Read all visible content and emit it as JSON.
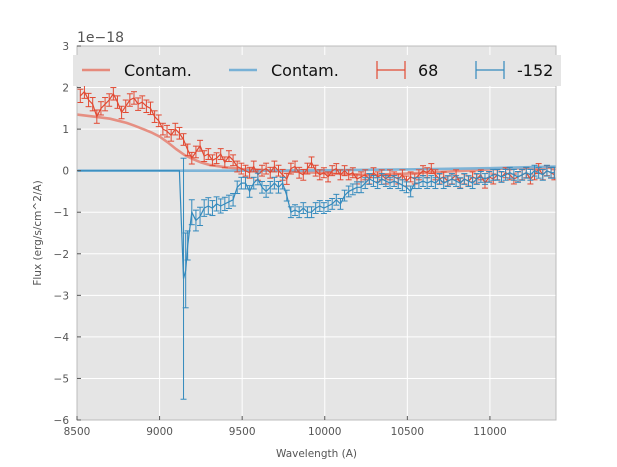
{
  "chart_data": {
    "type": "line",
    "xlabel": "Wavelength (A)",
    "ylabel": "Flux (erg/s/cm^2/A)",
    "offset_text": "1e−18",
    "xlim": [
      8500,
      11400
    ],
    "ylim": [
      -6,
      3
    ],
    "xticks": [
      8500,
      9000,
      9500,
      10000,
      10500,
      11000
    ],
    "xtick_labels": [
      "8500",
      "9000",
      "9500",
      "10000",
      "10500",
      "11000"
    ],
    "yticks": [
      -6,
      -5,
      -4,
      -3,
      -2,
      -1,
      0,
      1,
      2,
      3
    ],
    "ytick_labels": [
      "−6",
      "−5",
      "−4",
      "−3",
      "−2",
      "−1",
      "0",
      "1",
      "2",
      "3"
    ],
    "colors": {
      "red": "#E24A33",
      "blue": "#348ABD",
      "red_contam": "#E68A7C",
      "blue_contam": "#78B1D6",
      "background": "#E5E5E5",
      "grid": "#FFFFFF",
      "frame": "#BCBCBC"
    },
    "legend": {
      "placement": "top",
      "entries": [
        {
          "label": "Contam.",
          "kind": "line",
          "color": "#E68A7C"
        },
        {
          "label": "Contam.",
          "kind": "line",
          "color": "#78B1D6"
        },
        {
          "label": "68",
          "kind": "errorbar",
          "color": "#E24A33"
        },
        {
          "label": "-152",
          "kind": "errorbar",
          "color": "#348ABD"
        }
      ]
    },
    "contam_series": [
      {
        "name": "Contam. (68)",
        "color": "#E68A7C",
        "x": [
          8500,
          8600,
          8700,
          8800,
          8850,
          8900,
          8950,
          9000,
          9050,
          9100,
          9150,
          9200,
          9250,
          9300,
          9400,
          9500,
          9600,
          9700,
          9800,
          9900,
          10000,
          10100,
          10200,
          10300,
          10400,
          10500,
          10600,
          10700,
          10800,
          10900,
          11000,
          11100,
          11200,
          11400
        ],
        "y": [
          1.35,
          1.3,
          1.25,
          1.15,
          1.08,
          1.0,
          0.92,
          0.82,
          0.68,
          0.52,
          0.38,
          0.28,
          0.2,
          0.14,
          0.08,
          0.04,
          0.02,
          0.0,
          -0.02,
          -0.04,
          -0.06,
          -0.08,
          -0.1,
          -0.1,
          -0.09,
          -0.07,
          -0.05,
          -0.03,
          -0.01,
          0.01,
          0.03,
          0.05,
          0.06,
          0.08
        ]
      },
      {
        "name": "Contam. (-152)",
        "color": "#78B1D6",
        "x": [
          8500,
          9000,
          9500,
          10000,
          10500,
          11000,
          11400
        ],
        "y": [
          0.0,
          0.0,
          0.0,
          0.01,
          0.03,
          0.06,
          0.1
        ]
      }
    ],
    "errorbar_series": [
      {
        "name": "68",
        "color": "#E24A33",
        "x": [
          8520,
          8545,
          8570,
          8595,
          8620,
          8645,
          8670,
          8695,
          8720,
          8745,
          8770,
          8795,
          8820,
          8845,
          8870,
          8895,
          8920,
          8945,
          8970,
          8995,
          9020,
          9045,
          9070,
          9095,
          9120,
          9145,
          9170,
          9195,
          9220,
          9245,
          9270,
          9295,
          9320,
          9345,
          9370,
          9395,
          9420,
          9445,
          9470,
          9495,
          9520,
          9545,
          9570,
          9595,
          9620,
          9645,
          9670,
          9695,
          9720,
          9745,
          9770,
          9795,
          9820,
          9845,
          9870,
          9895,
          9920,
          9945,
          9970,
          9995,
          10020,
          10045,
          10070,
          10095,
          10120,
          10145,
          10170,
          10195,
          10220,
          10245,
          10270,
          10295,
          10320,
          10345,
          10370,
          10395,
          10420,
          10445,
          10470,
          10495,
          10520,
          10545,
          10570,
          10595,
          10620,
          10645,
          10670,
          10695,
          10720,
          10745,
          10770,
          10795,
          10820,
          10845,
          10870,
          10895,
          10920,
          10945,
          10970,
          10995,
          11020,
          11045,
          11070,
          11095,
          11120,
          11145,
          11170,
          11195,
          11220,
          11245,
          11270,
          11295,
          11320,
          11345,
          11370,
          11390
        ],
        "y": [
          1.8,
          1.9,
          1.7,
          1.6,
          1.3,
          1.5,
          1.6,
          1.7,
          1.85,
          1.65,
          1.4,
          1.55,
          1.7,
          1.75,
          1.6,
          1.65,
          1.55,
          1.5,
          1.3,
          1.2,
          1.0,
          0.95,
          0.85,
          1.0,
          0.9,
          0.75,
          0.5,
          0.3,
          0.45,
          0.6,
          0.35,
          0.4,
          0.25,
          0.3,
          0.4,
          0.2,
          0.35,
          0.25,
          0.1,
          0.05,
          0.0,
          -0.05,
          0.1,
          -0.1,
          0.0,
          0.05,
          -0.05,
          0.1,
          0.0,
          -0.1,
          -0.2,
          0.05,
          0.1,
          -0.05,
          -0.1,
          0.05,
          0.2,
          0.0,
          -0.1,
          -0.05,
          -0.15,
          0.0,
          0.05,
          -0.1,
          0.0,
          -0.1,
          -0.05,
          -0.2,
          -0.15,
          -0.1,
          -0.2,
          -0.05,
          -0.15,
          -0.1,
          -0.2,
          -0.1,
          -0.15,
          -0.2,
          -0.1,
          -0.25,
          -0.15,
          -0.2,
          -0.1,
          0.0,
          -0.05,
          0.05,
          -0.1,
          -0.2,
          -0.15,
          -0.25,
          -0.2,
          -0.1,
          -0.3,
          -0.2,
          -0.25,
          -0.15,
          -0.2,
          -0.1,
          -0.3,
          -0.15,
          -0.2,
          -0.1,
          -0.15,
          -0.05,
          -0.1,
          -0.2,
          -0.15,
          -0.1,
          -0.05,
          -0.2,
          -0.1,
          0.05,
          -0.1,
          0.0,
          -0.05,
          -0.1
        ],
        "err": [
          0.16,
          0.16,
          0.16,
          0.16,
          0.16,
          0.16,
          0.16,
          0.15,
          0.15,
          0.15,
          0.15,
          0.15,
          0.15,
          0.15,
          0.15,
          0.15,
          0.15,
          0.15,
          0.14,
          0.14,
          0.14,
          0.14,
          0.14,
          0.14,
          0.14,
          0.14,
          0.14,
          0.14,
          0.14,
          0.13,
          0.13,
          0.13,
          0.13,
          0.13,
          0.13,
          0.13,
          0.13,
          0.13,
          0.13,
          0.13,
          0.13,
          0.13,
          0.13,
          0.13,
          0.13,
          0.13,
          0.13,
          0.13,
          0.13,
          0.13,
          0.13,
          0.13,
          0.13,
          0.13,
          0.13,
          0.13,
          0.13,
          0.13,
          0.12,
          0.12,
          0.12,
          0.12,
          0.12,
          0.12,
          0.12,
          0.12,
          0.12,
          0.12,
          0.12,
          0.12,
          0.12,
          0.12,
          0.12,
          0.12,
          0.12,
          0.12,
          0.12,
          0.12,
          0.12,
          0.12,
          0.12,
          0.12,
          0.12,
          0.12,
          0.12,
          0.12,
          0.12,
          0.12,
          0.12,
          0.12,
          0.12,
          0.12,
          0.12,
          0.12,
          0.12,
          0.12,
          0.12,
          0.12,
          0.12,
          0.12,
          0.12,
          0.12,
          0.12,
          0.12,
          0.12,
          0.12,
          0.12,
          0.12,
          0.12,
          0.12,
          0.12,
          0.12,
          0.12,
          0.12,
          0.12,
          0.12
        ]
      },
      {
        "name": "-152",
        "color": "#348ABD",
        "x": [
          8500,
          9120,
          9145,
          9158,
          9170,
          9195,
          9220,
          9245,
          9270,
          9295,
          9320,
          9345,
          9370,
          9395,
          9420,
          9445,
          9470,
          9495,
          9520,
          9545,
          9570,
          9595,
          9620,
          9645,
          9670,
          9695,
          9720,
          9745,
          9770,
          9795,
          9820,
          9845,
          9870,
          9895,
          9920,
          9945,
          9970,
          9995,
          10020,
          10045,
          10070,
          10095,
          10120,
          10145,
          10170,
          10195,
          10220,
          10245,
          10270,
          10295,
          10320,
          10345,
          10370,
          10395,
          10420,
          10445,
          10470,
          10495,
          10520,
          10545,
          10570,
          10595,
          10620,
          10645,
          10670,
          10695,
          10720,
          10745,
          10770,
          10795,
          10820,
          10845,
          10870,
          10895,
          10920,
          10945,
          10970,
          10995,
          11020,
          11045,
          11070,
          11095,
          11120,
          11145,
          11170,
          11195,
          11220,
          11245,
          11270,
          11295,
          11320,
          11345,
          11370,
          11390
        ],
        "y": [
          0.0,
          0.0,
          -2.6,
          -2.4,
          -1.8,
          -1.0,
          -1.2,
          -1.1,
          -0.9,
          -0.85,
          -0.9,
          -0.8,
          -0.85,
          -0.8,
          -0.75,
          -0.7,
          -0.4,
          -0.3,
          -0.3,
          -0.5,
          -0.3,
          -0.2,
          -0.4,
          -0.5,
          -0.4,
          -0.3,
          -0.4,
          -0.3,
          -0.6,
          -1.0,
          -0.95,
          -1.0,
          -0.9,
          -1.0,
          -1.0,
          -0.9,
          -0.85,
          -0.9,
          -0.85,
          -0.8,
          -0.7,
          -0.8,
          -0.6,
          -0.5,
          -0.45,
          -0.4,
          -0.4,
          -0.3,
          -0.2,
          -0.25,
          -0.3,
          -0.2,
          -0.25,
          -0.3,
          -0.25,
          -0.3,
          -0.35,
          -0.4,
          -0.5,
          -0.3,
          -0.3,
          -0.25,
          -0.3,
          -0.25,
          -0.3,
          -0.2,
          -0.3,
          -0.25,
          -0.2,
          -0.25,
          -0.3,
          -0.2,
          -0.25,
          -0.3,
          -0.2,
          -0.15,
          -0.2,
          -0.15,
          -0.1,
          -0.1,
          -0.15,
          -0.1,
          -0.05,
          -0.1,
          -0.15,
          -0.1,
          -0.05,
          -0.1,
          0.0,
          -0.05,
          -0.1,
          0.0,
          -0.05,
          -0.05
        ],
        "err": [
          0.0,
          0.0,
          2.9,
          0.9,
          0.35,
          0.3,
          0.25,
          0.22,
          0.2,
          0.2,
          0.18,
          0.17,
          0.17,
          0.16,
          0.16,
          0.15,
          0.15,
          0.14,
          0.14,
          0.14,
          0.14,
          0.14,
          0.14,
          0.14,
          0.14,
          0.14,
          0.14,
          0.14,
          0.13,
          0.13,
          0.13,
          0.13,
          0.13,
          0.13,
          0.13,
          0.13,
          0.13,
          0.13,
          0.13,
          0.13,
          0.13,
          0.13,
          0.13,
          0.13,
          0.13,
          0.13,
          0.13,
          0.13,
          0.13,
          0.13,
          0.13,
          0.13,
          0.13,
          0.13,
          0.13,
          0.13,
          0.13,
          0.13,
          0.13,
          0.13,
          0.13,
          0.13,
          0.13,
          0.13,
          0.13,
          0.13,
          0.13,
          0.13,
          0.13,
          0.13,
          0.13,
          0.13,
          0.13,
          0.13,
          0.13,
          0.13,
          0.13,
          0.13,
          0.13,
          0.13,
          0.13,
          0.13,
          0.13,
          0.13,
          0.13,
          0.13,
          0.13,
          0.13,
          0.13,
          0.13,
          0.13,
          0.13,
          0.13,
          0.13
        ]
      }
    ]
  }
}
